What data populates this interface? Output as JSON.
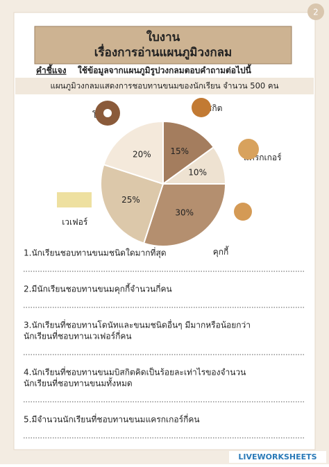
{
  "page_number": "2",
  "header": {
    "title": "ใบงาน",
    "subtitle": "เรื่องการอ่านแผนภูมิวงกลม"
  },
  "instruction": {
    "label": "คำชี้แจง",
    "text": "ใช้ข้อมูลจากแผนภูมิรูปวงกลมตอบคำถามต่อไปนี้"
  },
  "chart_data": {
    "type": "pie",
    "title": "แผนภูมิวงกลมแสดงการชอบทานขนมของนักเรียน จำนวน 500 คน",
    "categories": [
      "บิสกิต",
      "แครกเกอร์",
      "คุกกี้",
      "เวเฟอร์",
      "โดนัท"
    ],
    "values": [
      15,
      10,
      30,
      25,
      20
    ],
    "value_labels": [
      "15%",
      "10%",
      "30%",
      "25%",
      "20%"
    ],
    "colors": [
      "#a47d5e",
      "#eee2d1",
      "#b48f6f",
      "#dcc8aa",
      "#f4e9db"
    ]
  },
  "questions": [
    [
      "1.นักเรียนชอบทานขนมชนิดใดมากที่สุด"
    ],
    [
      "2.มีนักเรียนชอบทานขนมคุกกี้จำนวนกี่คน"
    ],
    [
      "3.นักเรียนที่ชอบทานโดนัทและขนมชนิดอื่นๆ มีมากหรือน้อยกว่า",
      "นักเรียนที่ชอบทานเวเฟอร์กี่คน"
    ],
    [
      "4.นักเรียนที่ชอบทานขนมบิสกิตคิดเป็นร้อยละเท่าไรของจำนวน",
      "นักเรียนที่ชอบทานขนมทั้งหมด"
    ],
    [
      "5.มีจำนวนนักเรียนที่ชอบทานขนมแครกเกอร์กี่คน"
    ]
  ],
  "footer": "LIVEWORKSHEETS"
}
